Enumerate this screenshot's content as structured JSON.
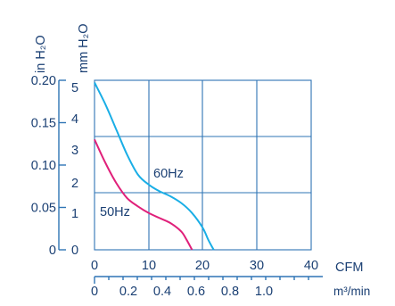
{
  "chart_data": {
    "type": "line",
    "axes": {
      "left_outer_label": "in H₂O",
      "left_inner_label": "mm H₂O",
      "left_outer_ticks": [
        "0.20",
        "0.15",
        "0.10",
        "0.05",
        "0"
      ],
      "left_inner_ticks": [
        "5",
        "4",
        "3",
        "2",
        "1",
        "0"
      ],
      "x_cfm_label": "CFM",
      "x_cfm_ticks": [
        "0",
        "10",
        "20",
        "30",
        "40"
      ],
      "x_m3_label": "m³/min",
      "x_m3_ticks": [
        "0",
        "0.2",
        "0.4",
        "0.6",
        "0.8",
        "1.0"
      ],
      "xlim_cfm": [
        0,
        40
      ],
      "ylim_mmH2O": [
        0,
        5
      ],
      "grid": true
    },
    "series": [
      {
        "name": "60Hz",
        "color": "#1aaee6",
        "x_cfm": [
          0,
          2,
          4,
          6,
          8,
          10,
          12,
          14,
          16,
          18,
          20,
          21,
          22
        ],
        "y_mmH2O": [
          5.0,
          4.35,
          3.6,
          2.85,
          2.25,
          1.95,
          1.75,
          1.6,
          1.4,
          1.1,
          0.65,
          0.3,
          0
        ]
      },
      {
        "name": "50Hz",
        "color": "#e0207a",
        "x_cfm": [
          0,
          2,
          4,
          6,
          8,
          10,
          12,
          14,
          16,
          17,
          18
        ],
        "y_mmH2O": [
          3.3,
          2.6,
          2.0,
          1.55,
          1.3,
          1.1,
          0.95,
          0.8,
          0.55,
          0.3,
          0
        ]
      }
    ]
  }
}
